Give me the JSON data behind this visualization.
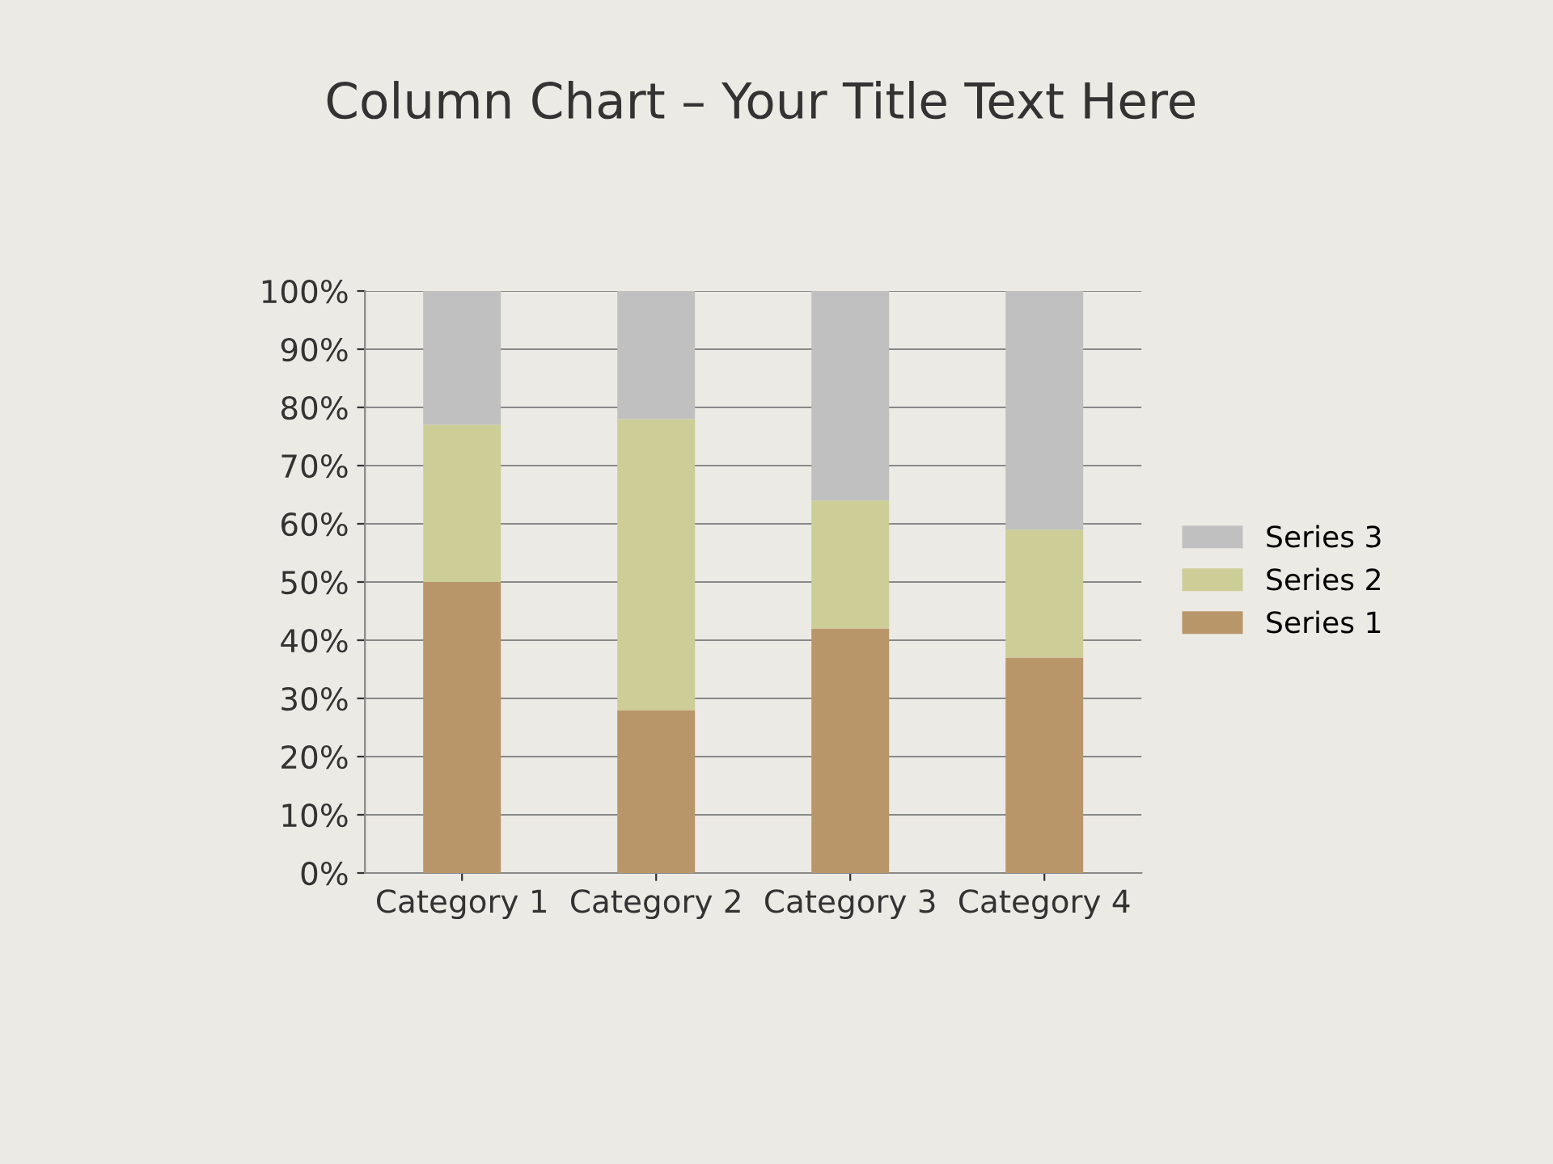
{
  "chart_data": {
    "type": "bar",
    "stacked": true,
    "title": "Column Chart – Your Title Text Here",
    "categories": [
      "Category 1",
      "Category 2",
      "Category 3",
      "Category 4"
    ],
    "series": [
      {
        "name": "Series 1",
        "color": "#b9966a",
        "values": [
          50,
          28,
          42,
          37
        ]
      },
      {
        "name": "Series 2",
        "color": "#cdcd98",
        "values": [
          27,
          50,
          22,
          22
        ]
      },
      {
        "name": "Series 3",
        "color": "#c0c0c0",
        "values": [
          23,
          22,
          36,
          41
        ]
      }
    ],
    "ylim": [
      0,
      100
    ],
    "yticks": [
      {
        "value": 0,
        "label": "0%"
      },
      {
        "value": 10,
        "label": "10%"
      },
      {
        "value": 20,
        "label": "20%"
      },
      {
        "value": 30,
        "label": "30%"
      },
      {
        "value": 40,
        "label": "40%"
      },
      {
        "value": 50,
        "label": "50%"
      },
      {
        "value": 60,
        "label": "60%"
      },
      {
        "value": 70,
        "label": "70%"
      },
      {
        "value": 80,
        "label": "80%"
      },
      {
        "value": 90,
        "label": "90%"
      },
      {
        "value": 100,
        "label": "100%"
      }
    ],
    "grid": "y",
    "legend": "right"
  }
}
